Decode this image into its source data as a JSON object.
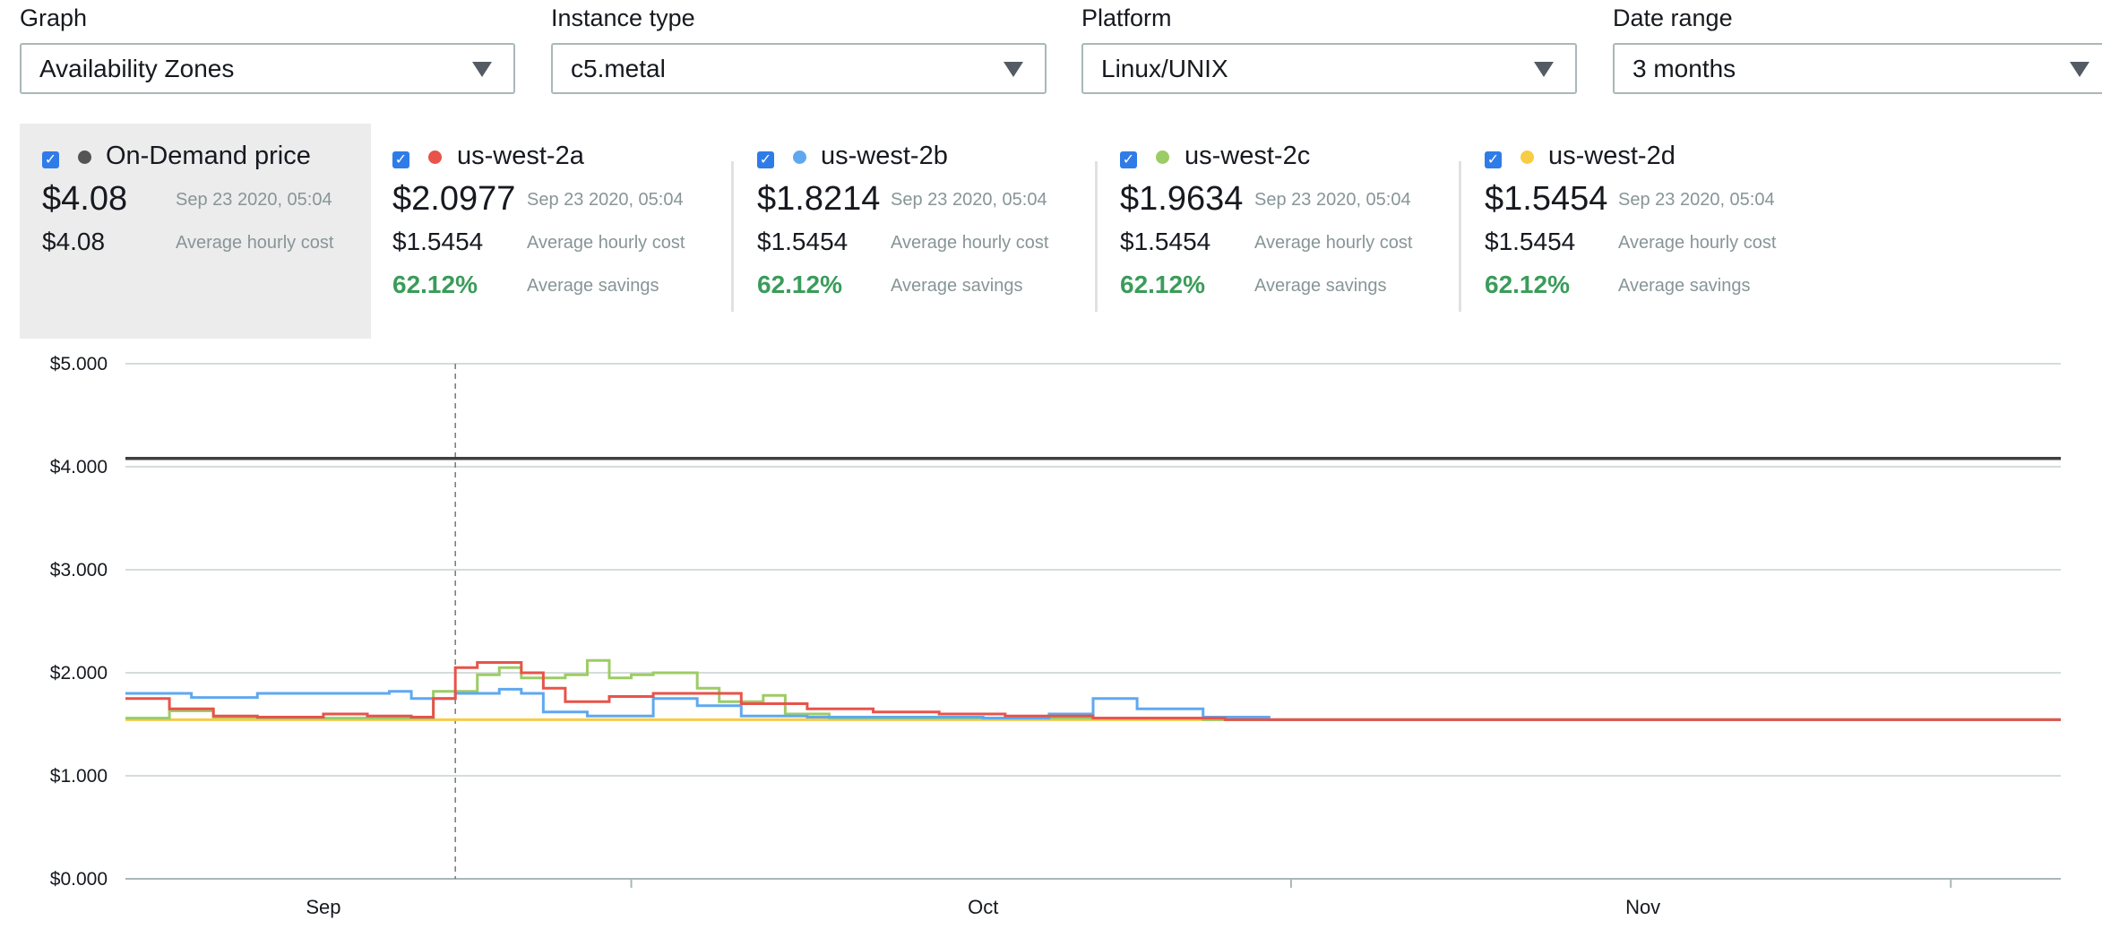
{
  "filters": {
    "graph": {
      "label": "Graph",
      "value": "Availability Zones"
    },
    "instance_type": {
      "label": "Instance type",
      "value": "c5.metal"
    },
    "platform": {
      "label": "Platform",
      "value": "Linux/UNIX"
    },
    "date_range": {
      "label": "Date range",
      "value": "3 months"
    }
  },
  "cards": [
    {
      "name": "On-Demand price",
      "checked": true,
      "color": "#545454",
      "price": "$4.08",
      "timestamp": "Sep 23 2020, 05:04",
      "avg_cost": "$4.08",
      "avg_cost_label": "Average hourly cost"
    },
    {
      "name": "us-west-2a",
      "checked": true,
      "color": "#e8534a",
      "price": "$2.0977",
      "timestamp": "Sep 23 2020, 05:04",
      "avg_cost": "$1.5454",
      "avg_cost_label": "Average hourly cost",
      "savings": "62.12%",
      "savings_label": "Average savings"
    },
    {
      "name": "us-west-2b",
      "checked": true,
      "color": "#5fa8ef",
      "price": "$1.8214",
      "timestamp": "Sep 23 2020, 05:04",
      "avg_cost": "$1.5454",
      "avg_cost_label": "Average hourly cost",
      "savings": "62.12%",
      "savings_label": "Average savings"
    },
    {
      "name": "us-west-2c",
      "checked": true,
      "color": "#9ccc65",
      "price": "$1.9634",
      "timestamp": "Sep 23 2020, 05:04",
      "avg_cost": "$1.5454",
      "avg_cost_label": "Average hourly cost",
      "savings": "62.12%",
      "savings_label": "Average savings"
    },
    {
      "name": "us-west-2d",
      "checked": true,
      "color": "#f6cd45",
      "price": "$1.5454",
      "timestamp": "Sep 23 2020, 05:04",
      "avg_cost": "$1.5454",
      "avg_cost_label": "Average hourly cost",
      "savings": "62.12%",
      "savings_label": "Average savings"
    }
  ],
  "chart_data": {
    "type": "line",
    "title": "",
    "xlabel": "",
    "ylabel": "",
    "ylim": [
      0,
      5
    ],
    "yticks": [
      "$5.000",
      "$4.000",
      "$3.000",
      "$2.000",
      "$1.000",
      "$0.000"
    ],
    "xlim": [
      "2020-08-27",
      "2020-11-23"
    ],
    "xtick_labels": [
      {
        "label": "Sep",
        "date": "2020-09-05"
      },
      {
        "label": "Oct",
        "date": "2020-10-05"
      },
      {
        "label": "Nov",
        "date": "2020-11-04"
      }
    ],
    "x_tick_marks": [
      "2020-09-19",
      "2020-10-19",
      "2020-11-18"
    ],
    "grid": true,
    "hover_marker_date": "2020-09-11",
    "series": [
      {
        "name": "On-Demand price",
        "color": "#3f3f3f",
        "dates": [
          "2020-08-27",
          "2020-11-23"
        ],
        "values": [
          4.08,
          4.08
        ]
      },
      {
        "name": "us-west-2a",
        "color": "#e8534a",
        "dates": [
          "2020-08-27",
          "2020-08-29",
          "2020-08-31",
          "2020-09-02",
          "2020-09-05",
          "2020-09-07",
          "2020-09-09",
          "2020-09-10",
          "2020-09-11",
          "2020-09-12",
          "2020-09-13",
          "2020-09-14",
          "2020-09-15",
          "2020-09-16",
          "2020-09-18",
          "2020-09-20",
          "2020-09-22",
          "2020-09-24",
          "2020-09-27",
          "2020-09-30",
          "2020-10-03",
          "2020-10-06",
          "2020-10-10",
          "2020-10-16",
          "2020-11-23"
        ],
        "values": [
          1.75,
          1.65,
          1.58,
          1.57,
          1.6,
          1.58,
          1.57,
          1.75,
          2.05,
          2.1,
          2.1,
          2.0,
          1.85,
          1.72,
          1.77,
          1.8,
          1.8,
          1.7,
          1.65,
          1.62,
          1.6,
          1.58,
          1.56,
          1.545,
          1.545
        ]
      },
      {
        "name": "us-west-2b",
        "color": "#5fa8ef",
        "dates": [
          "2020-08-27",
          "2020-08-30",
          "2020-09-02",
          "2020-09-05",
          "2020-09-08",
          "2020-09-09",
          "2020-09-11",
          "2020-09-13",
          "2020-09-14",
          "2020-09-15",
          "2020-09-17",
          "2020-09-20",
          "2020-09-22",
          "2020-09-24",
          "2020-09-27",
          "2020-10-01",
          "2020-10-05",
          "2020-10-08",
          "2020-10-10",
          "2020-10-12",
          "2020-10-15",
          "2020-10-18",
          "2020-11-23"
        ],
        "values": [
          1.8,
          1.76,
          1.8,
          1.8,
          1.82,
          1.75,
          1.8,
          1.84,
          1.8,
          1.62,
          1.58,
          1.75,
          1.68,
          1.58,
          1.57,
          1.57,
          1.56,
          1.6,
          1.75,
          1.65,
          1.57,
          1.545,
          1.545
        ]
      },
      {
        "name": "us-west-2c",
        "color": "#9ccc65",
        "dates": [
          "2020-08-27",
          "2020-08-29",
          "2020-08-31",
          "2020-09-02",
          "2020-09-05",
          "2020-09-08",
          "2020-09-10",
          "2020-09-12",
          "2020-09-13",
          "2020-09-14",
          "2020-09-16",
          "2020-09-17",
          "2020-09-18",
          "2020-09-19",
          "2020-09-20",
          "2020-09-22",
          "2020-09-23",
          "2020-09-25",
          "2020-09-26",
          "2020-09-28",
          "2020-10-02",
          "2020-10-06",
          "2020-10-10",
          "2020-10-15",
          "2020-11-23"
        ],
        "values": [
          1.56,
          1.63,
          1.57,
          1.56,
          1.56,
          1.56,
          1.82,
          1.98,
          2.05,
          1.95,
          1.98,
          2.12,
          1.95,
          1.98,
          2.0,
          1.85,
          1.72,
          1.78,
          1.6,
          1.56,
          1.56,
          1.56,
          1.56,
          1.545,
          1.545
        ]
      },
      {
        "name": "us-west-2d",
        "color": "#f6cd45",
        "dates": [
          "2020-08-27",
          "2020-11-23"
        ],
        "values": [
          1.545,
          1.545
        ]
      }
    ]
  }
}
